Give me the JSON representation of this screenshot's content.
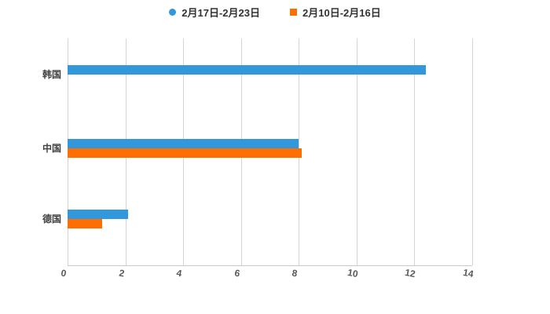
{
  "chart_data": {
    "type": "bar",
    "orientation": "horizontal",
    "title": "",
    "xlabel": "",
    "ylabel": "",
    "categories": [
      "韩国",
      "中国",
      "德国"
    ],
    "series": [
      {
        "name": "2月17日-2月23日",
        "color": "#3398db",
        "marker": "circle",
        "values": [
          12.4,
          8.0,
          2.1
        ]
      },
      {
        "name": "2月10日-2月16日",
        "color": "#ff6e00",
        "marker": "square",
        "values": [
          0,
          8.1,
          1.2
        ]
      }
    ],
    "x_ticks": [
      "0",
      "2",
      "4",
      "6",
      "8",
      "10",
      "12",
      "14"
    ],
    "xlim": [
      0,
      14
    ],
    "grid": true,
    "gridline_color": "#d4d4d4",
    "axis_line_color": "#c9c9c9",
    "legend_position": "top"
  }
}
